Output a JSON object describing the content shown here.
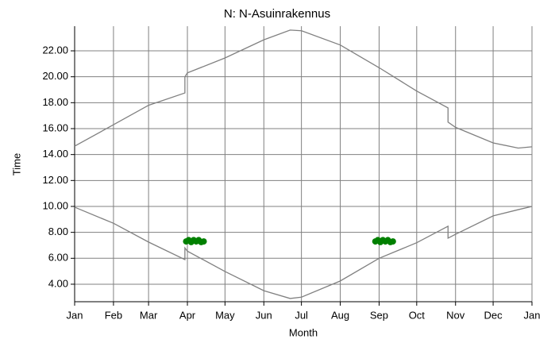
{
  "chart_data": {
    "type": "line",
    "title": "N: N-Asuinrakennus",
    "x_label": "Month",
    "y_label": "Time",
    "x": [
      0,
      31,
      59,
      88,
      88,
      90,
      120,
      151,
      172,
      181,
      212,
      243,
      273,
      298,
      298,
      304,
      334,
      354,
      365
    ],
    "series": [
      {
        "color": "#808080",
        "values": [
          14.65,
          16.3,
          17.8,
          18.75,
          20.0,
          20.3,
          21.45,
          22.85,
          23.6,
          23.55,
          22.45,
          20.7,
          18.9,
          17.6,
          16.5,
          16.1,
          14.9,
          14.5,
          14.6
        ]
      },
      {
        "color": "#808080",
        "values": [
          9.94,
          8.7,
          7.25,
          5.9,
          6.8,
          6.55,
          4.98,
          3.5,
          2.9,
          3.0,
          4.25,
          6.0,
          7.2,
          8.47,
          7.55,
          7.85,
          9.27,
          9.75,
          10.0
        ]
      },
      {
        "type": "scatter",
        "color": "#008000",
        "x": [
          89,
          91,
          93,
          95,
          97,
          99,
          101,
          103,
          240,
          242,
          244,
          246,
          248,
          250,
          252,
          254
        ],
        "values": [
          7.3,
          7.4,
          7.25,
          7.4,
          7.3,
          7.4,
          7.25,
          7.3,
          7.3,
          7.4,
          7.25,
          7.4,
          7.3,
          7.4,
          7.25,
          7.3
        ]
      }
    ],
    "xlim": [
      0,
      365
    ],
    "xticks": [
      {
        "value": 0,
        "label": "Jan"
      },
      {
        "value": 31,
        "label": "Feb"
      },
      {
        "value": 59,
        "label": "Mar"
      },
      {
        "value": 90,
        "label": "Apr"
      },
      {
        "value": 120,
        "label": "May"
      },
      {
        "value": 151,
        "label": "Jun"
      },
      {
        "value": 181,
        "label": "Jul"
      },
      {
        "value": 212,
        "label": "Aug"
      },
      {
        "value": 243,
        "label": "Sep"
      },
      {
        "value": 273,
        "label": "Oct"
      },
      {
        "value": 304,
        "label": "Nov"
      },
      {
        "value": 334,
        "label": "Dec"
      },
      {
        "value": 365,
        "label": "Jan"
      }
    ],
    "ylim": [
      2.65,
      23.9
    ],
    "yticks": [
      {
        "value": 4,
        "label": "4.00"
      },
      {
        "value": 6,
        "label": "6.00"
      },
      {
        "value": 8,
        "label": "8.00"
      },
      {
        "value": 10,
        "label": "10.00"
      },
      {
        "value": 12,
        "label": "12.00"
      },
      {
        "value": 14,
        "label": "14.00"
      },
      {
        "value": 16,
        "label": "16.00"
      },
      {
        "value": 18,
        "label": "18.00"
      },
      {
        "value": 20,
        "label": "20.00"
      },
      {
        "value": 22,
        "label": "22.00"
      }
    ],
    "grid": true
  }
}
